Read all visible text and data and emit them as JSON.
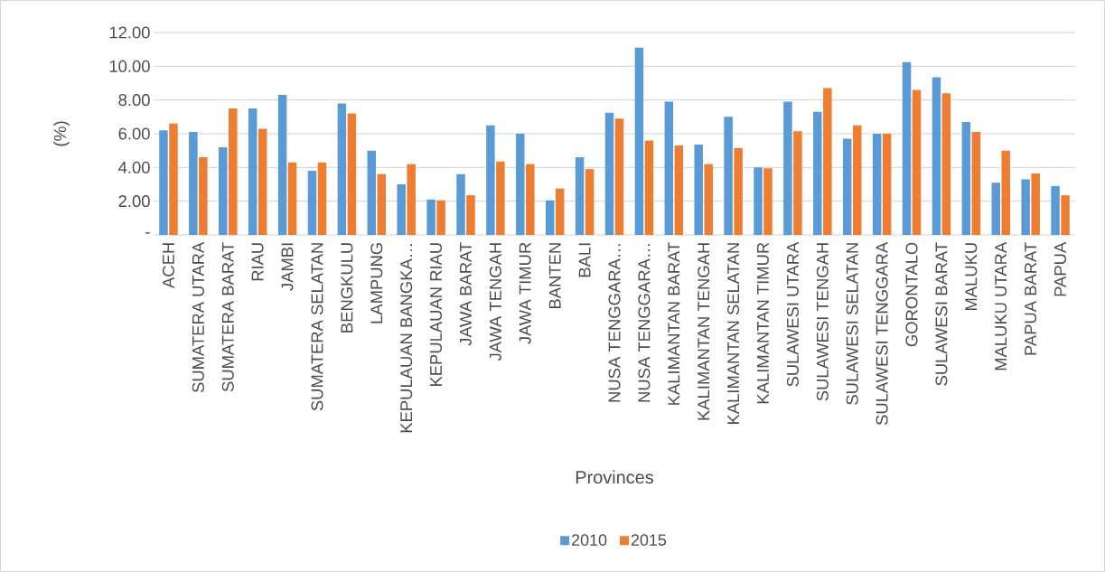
{
  "chart_data": {
    "type": "bar",
    "xlabel": "Provinces",
    "ylabel": "(%)",
    "categories": [
      "ACEH",
      "SUMATERA UTARA",
      "SUMATERA BARAT",
      "RIAU",
      "JAMBI",
      "SUMATERA SELATAN",
      "BENGKULU",
      "LAMPUNG",
      "KEPULAUAN BANGKA…",
      "KEPULAUAN RIAU",
      "JAWA BARAT",
      "JAWA TENGAH",
      "JAWA TIMUR",
      "BANTEN",
      "BALI",
      "NUSA TENGGARA…",
      "NUSA TENGGARA…",
      "KALIMANTAN BARAT",
      "KALIMANTAN TENGAH",
      "KALIMANTAN SELATAN",
      "KALIMANTAN TIMUR",
      "SULAWESI UTARA",
      "SULAWESI TENGAH",
      "SULAWESI SELATAN",
      "SULAWESI TENGGARA",
      "GORONTALO",
      "SULAWESI BARAT",
      "MALUKU",
      "MALUKU UTARA",
      "PAPUA BARAT",
      "PAPUA"
    ],
    "series": [
      {
        "name": "2010",
        "color": "#5b9bd5",
        "values": [
          6.2,
          6.1,
          5.2,
          7.5,
          8.3,
          3.8,
          7.8,
          5.0,
          3.0,
          2.1,
          3.6,
          6.5,
          6.0,
          2.05,
          4.6,
          7.25,
          11.1,
          7.9,
          5.35,
          7.0,
          4.0,
          7.9,
          7.3,
          5.7,
          6.0,
          10.25,
          9.35,
          6.7,
          3.1,
          3.3,
          2.9
        ]
      },
      {
        "name": "2015",
        "color": "#ed7d31",
        "values": [
          6.6,
          4.6,
          7.5,
          6.3,
          4.3,
          4.3,
          7.2,
          3.6,
          4.2,
          2.05,
          2.35,
          4.35,
          4.2,
          2.75,
          3.9,
          6.9,
          5.6,
          5.3,
          4.2,
          5.15,
          3.95,
          6.15,
          8.7,
          6.5,
          6.0,
          8.6,
          8.4,
          6.1,
          5.0,
          3.65,
          2.35
        ]
      }
    ],
    "ylim": [
      0,
      12
    ],
    "yticks": [
      {
        "value": 0,
        "label": "-"
      },
      {
        "value": 2,
        "label": "2.00"
      },
      {
        "value": 4,
        "label": "4.00"
      },
      {
        "value": 6,
        "label": "6.00"
      },
      {
        "value": 8,
        "label": "8.00"
      },
      {
        "value": 10,
        "label": "10.00"
      },
      {
        "value": 12,
        "label": "12.00"
      }
    ],
    "grid": "y",
    "legend": "bottom"
  }
}
